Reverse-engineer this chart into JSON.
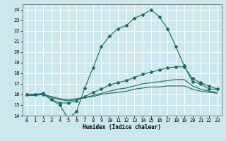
{
  "xlabel": "Humidex (Indice chaleur)",
  "bg_color": "#cce8ec",
  "grid_color": "#ffffff",
  "line_color": "#1a6b6b",
  "xlim": [
    -0.5,
    23.5
  ],
  "ylim": [
    14,
    24.5
  ],
  "yticks": [
    14,
    15,
    16,
    17,
    18,
    19,
    20,
    21,
    22,
    23,
    24
  ],
  "xticks": [
    0,
    1,
    2,
    3,
    4,
    5,
    6,
    7,
    8,
    9,
    10,
    11,
    12,
    13,
    14,
    15,
    16,
    17,
    18,
    19,
    20,
    21,
    22,
    23
  ],
  "line1_x": [
    0,
    1,
    2,
    3,
    4,
    5,
    6,
    7,
    8,
    9,
    10,
    11,
    12,
    13,
    14,
    15,
    16,
    17,
    18,
    19,
    20,
    21,
    22,
    23
  ],
  "line1_y": [
    16.0,
    16.0,
    16.1,
    15.5,
    15.0,
    13.7,
    14.4,
    16.6,
    18.5,
    20.5,
    21.5,
    22.2,
    22.5,
    23.2,
    23.5,
    24.0,
    23.3,
    22.2,
    20.5,
    18.7,
    17.2,
    17.0,
    16.5,
    16.5
  ],
  "line2_x": [
    0,
    1,
    2,
    3,
    4,
    5,
    6,
    7,
    8,
    9,
    10,
    11,
    12,
    13,
    14,
    15,
    16,
    17,
    18,
    19,
    20,
    21,
    22,
    23
  ],
  "line2_y": [
    16.0,
    16.0,
    16.0,
    15.5,
    15.2,
    15.2,
    15.4,
    15.8,
    16.2,
    16.5,
    16.9,
    17.1,
    17.3,
    17.6,
    17.9,
    18.1,
    18.3,
    18.5,
    18.6,
    18.6,
    17.5,
    17.1,
    16.8,
    16.5
  ],
  "line3_x": [
    0,
    1,
    2,
    3,
    4,
    5,
    6,
    7,
    8,
    9,
    10,
    11,
    12,
    13,
    14,
    15,
    16,
    17,
    18,
    19,
    20,
    21,
    22,
    23
  ],
  "line3_y": [
    16.0,
    16.0,
    16.0,
    15.7,
    15.5,
    15.4,
    15.5,
    15.7,
    15.9,
    16.1,
    16.3,
    16.5,
    16.6,
    16.8,
    17.0,
    17.1,
    17.2,
    17.3,
    17.4,
    17.4,
    16.8,
    16.5,
    16.3,
    16.2
  ],
  "line4_x": [
    0,
    1,
    2,
    3,
    4,
    5,
    6,
    7,
    8,
    9,
    10,
    11,
    12,
    13,
    14,
    15,
    16,
    17,
    18,
    19,
    20,
    21,
    22,
    23
  ],
  "line4_y": [
    15.9,
    15.9,
    16.0,
    15.8,
    15.6,
    15.5,
    15.6,
    15.7,
    15.8,
    16.0,
    16.1,
    16.2,
    16.3,
    16.5,
    16.6,
    16.7,
    16.7,
    16.8,
    16.8,
    16.8,
    16.5,
    16.3,
    16.2,
    16.1
  ]
}
